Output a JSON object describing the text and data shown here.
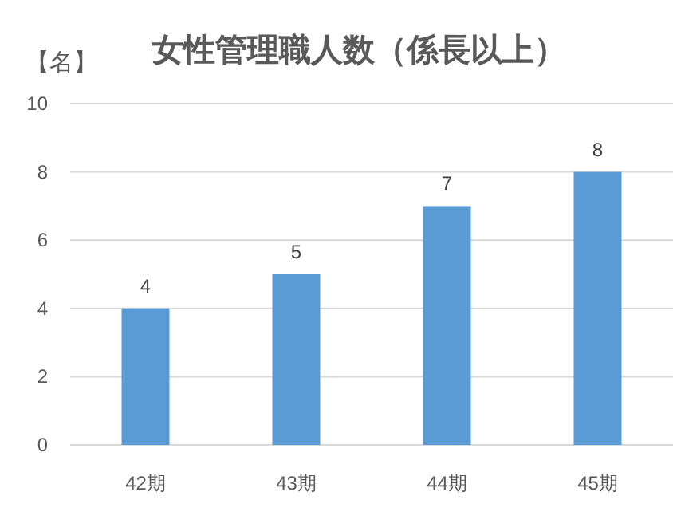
{
  "chart_data": {
    "type": "bar",
    "title": "女性管理職人数（係長以上）",
    "ylabel": "【名】",
    "categories": [
      "42期",
      "43期",
      "44期",
      "45期"
    ],
    "values": [
      4,
      5,
      7,
      8
    ],
    "color": "#5b9bd5",
    "ylim": [
      0,
      10
    ],
    "yticks": [
      0,
      2,
      4,
      6,
      8,
      10
    ],
    "grid": "y",
    "data_labels": true
  }
}
